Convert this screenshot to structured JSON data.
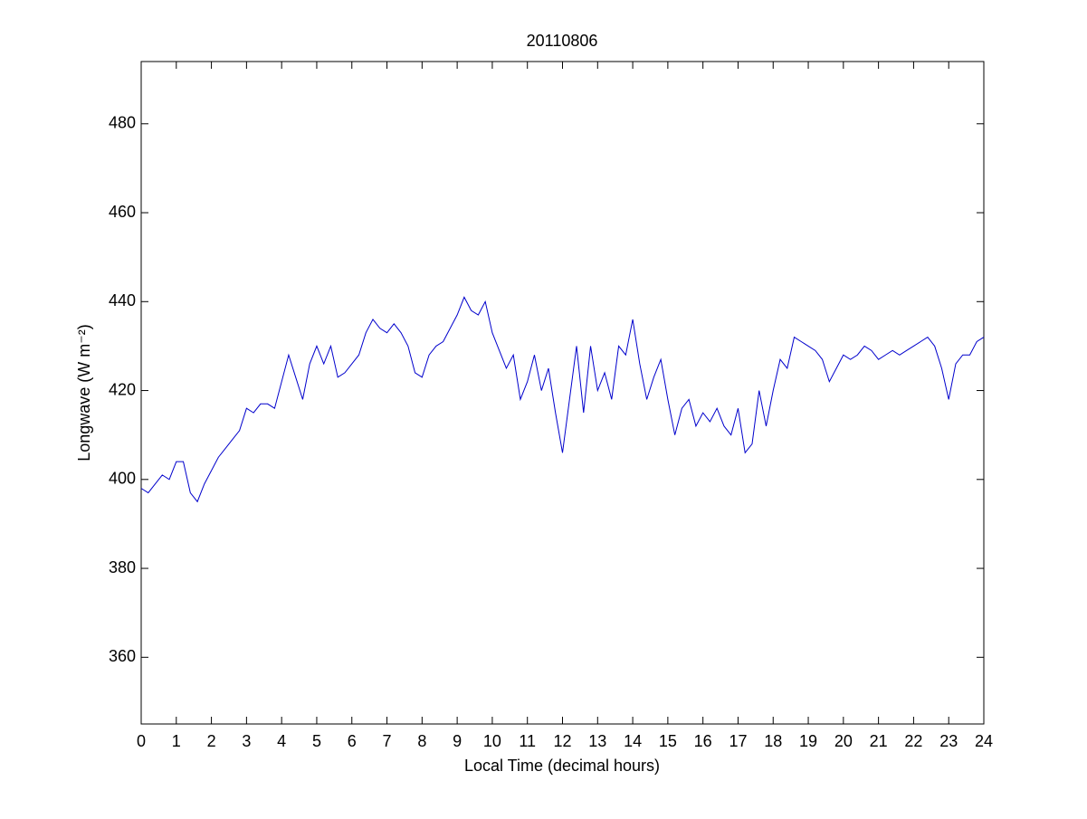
{
  "chart_data": {
    "type": "line",
    "title": "20110806",
    "xlabel": "Local Time (decimal hours)",
    "ylabel": "Longwave (W m⁻²)",
    "xlim": [
      0,
      24
    ],
    "xticks": [
      0,
      1,
      2,
      3,
      4,
      5,
      6,
      7,
      8,
      9,
      10,
      11,
      12,
      13,
      14,
      15,
      16,
      17,
      18,
      19,
      20,
      21,
      22,
      23,
      24
    ],
    "ylim": [
      345,
      494
    ],
    "yticks": [
      360,
      380,
      400,
      420,
      440,
      460,
      480
    ],
    "grid": false,
    "series": [
      {
        "color": "#0000cc",
        "x": [
          0,
          0.2,
          0.4,
          0.6,
          0.8,
          1,
          1.2,
          1.4,
          1.6,
          1.8,
          2,
          2.2,
          2.4,
          2.6,
          2.8,
          3,
          3.2,
          3.4,
          3.6,
          3.8,
          4,
          4.2,
          4.4,
          4.6,
          4.8,
          5,
          5.2,
          5.4,
          5.6,
          5.8,
          6,
          6.2,
          6.4,
          6.6,
          6.8,
          7,
          7.2,
          7.4,
          7.6,
          7.8,
          8,
          8.2,
          8.4,
          8.6,
          8.8,
          9,
          9.2,
          9.4,
          9.6,
          9.8,
          10,
          10.2,
          10.4,
          10.6,
          10.8,
          11,
          11.2,
          11.4,
          11.6,
          11.8,
          12,
          12.2,
          12.4,
          12.6,
          12.8,
          13,
          13.2,
          13.4,
          13.6,
          13.8,
          14,
          14.2,
          14.4,
          14.6,
          14.8,
          15,
          15.2,
          15.4,
          15.6,
          15.8,
          16,
          16.2,
          16.4,
          16.6,
          16.8,
          17,
          17.2,
          17.4,
          17.6,
          17.8,
          18,
          18.2,
          18.4,
          18.6,
          18.8,
          19,
          19.2,
          19.4,
          19.6,
          19.8,
          20,
          20.2,
          20.4,
          20.6,
          20.8,
          21,
          21.2,
          21.4,
          21.6,
          21.8,
          22,
          22.2,
          22.4,
          22.6,
          22.8,
          23,
          23.2,
          23.4,
          23.6,
          23.8,
          24
        ],
        "values": [
          398,
          397,
          399,
          401,
          400,
          404,
          404,
          397,
          395,
          399,
          402,
          405,
          407,
          409,
          411,
          416,
          415,
          417,
          417,
          416,
          422,
          428,
          423,
          418,
          426,
          430,
          426,
          430,
          423,
          424,
          426,
          428,
          433,
          436,
          434,
          433,
          435,
          433,
          430,
          424,
          423,
          428,
          430,
          431,
          434,
          437,
          441,
          438,
          437,
          440,
          433,
          429,
          425,
          428,
          418,
          422,
          428,
          420,
          425,
          415,
          406,
          418,
          430,
          415,
          430,
          420,
          424,
          418,
          430,
          428,
          436,
          426,
          418,
          423,
          427,
          418,
          410,
          416,
          418,
          412,
          415,
          413,
          416,
          412,
          410,
          416,
          406,
          408,
          420,
          412,
          420,
          427,
          425,
          432,
          431,
          430,
          429,
          427,
          422,
          425,
          428,
          427,
          428,
          430,
          429,
          427,
          428,
          429,
          428,
          429,
          430,
          431,
          432,
          430,
          425,
          418,
          426,
          428,
          428,
          431,
          432
        ]
      }
    ]
  }
}
